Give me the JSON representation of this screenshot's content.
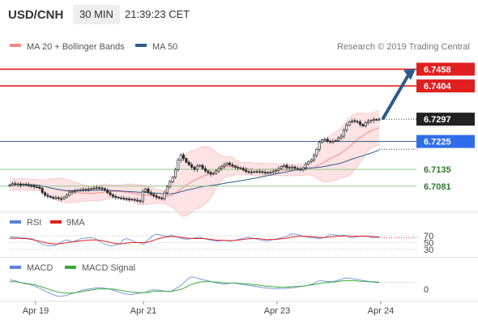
{
  "header": {
    "pair": "USD/CNH",
    "timeframe": "30 MIN",
    "time": "21:39:23 CET"
  },
  "chart_data": {
    "type": "candlestick",
    "legend": {
      "ma20_bollinger": "MA 20 + Bollinger Bands",
      "ma50": "MA 50"
    },
    "copyright": "Research © 2019 Trading Central",
    "x_ticks": [
      "Apr 19",
      "Apr 21",
      "Apr 23",
      "Apr 24"
    ],
    "price_levels": [
      {
        "value": 6.7458,
        "label": "6.7458",
        "kind": "resistance"
      },
      {
        "value": 6.7404,
        "label": "6.7404",
        "kind": "resistance"
      },
      {
        "value": 6.7297,
        "label": "6.7297",
        "kind": "last"
      },
      {
        "value": 6.7225,
        "label": "6.7225",
        "kind": "pivot"
      },
      {
        "value": 6.7135,
        "label": "6.7135",
        "kind": "support"
      },
      {
        "value": 6.7081,
        "label": "6.7081",
        "kind": "support"
      }
    ],
    "close": [
      6.7085,
      6.7089,
      6.7086,
      6.7088,
      6.7084,
      6.7087,
      6.7085,
      6.7083,
      6.7082,
      6.7079,
      6.7078,
      6.7074,
      6.706,
      6.7052,
      6.7048,
      6.7045,
      6.7042,
      6.7044,
      6.7041,
      6.704,
      6.7046,
      6.7052,
      6.706,
      6.7064,
      6.7066,
      6.7068,
      6.7069,
      6.707,
      6.7071,
      6.7072,
      6.7073,
      6.7075,
      6.7076,
      6.7075,
      6.7073,
      6.7068,
      6.706,
      6.7053,
      6.7048,
      6.7045,
      6.7043,
      6.7042,
      6.7041,
      6.704,
      6.7039,
      6.7038,
      6.7036,
      6.7034,
      6.7032,
      6.7064,
      6.7072,
      6.706,
      6.7055,
      6.705,
      6.7045,
      6.7042,
      6.704,
      6.706,
      6.708,
      6.7095,
      6.711,
      6.7135,
      6.7165,
      6.7182,
      6.717,
      6.7158,
      6.715,
      6.7142,
      6.7135,
      6.7146,
      6.7148,
      6.7138,
      6.713,
      6.7125,
      6.712,
      6.7122,
      6.713,
      6.7138,
      6.7145,
      6.715,
      6.7155,
      6.715,
      6.7146,
      6.7142,
      6.714,
      6.7138,
      6.7133,
      6.7128,
      6.7127,
      6.7126,
      6.7128,
      6.7127,
      6.7128,
      6.7126,
      6.7125,
      6.7124,
      6.7126,
      6.7128,
      6.7132,
      6.7138,
      6.7144,
      6.7148,
      6.714,
      6.7142,
      6.7143,
      6.7138,
      6.7136,
      6.7134,
      6.714,
      6.7152,
      6.716,
      6.7165,
      6.718,
      6.72,
      6.7222,
      6.723,
      6.7232,
      6.7226,
      6.7224,
      6.7226,
      6.7228,
      6.7236,
      6.7242,
      6.7262,
      6.7278,
      6.7288,
      6.7292,
      6.729,
      6.7288,
      6.728,
      6.7275,
      6.7285,
      6.729,
      6.7293,
      6.7296,
      6.7295,
      6.7297
    ],
    "y_range": [
      6.701,
      6.748
    ],
    "rsi": {
      "name": "RSI",
      "ma_name": "9MA",
      "levels": [
        70,
        50,
        30
      ],
      "level_labels": [
        "70",
        "50",
        "30"
      ],
      "values": [
        66,
        67,
        66,
        65,
        64,
        64,
        63,
        62,
        60,
        55,
        50,
        45,
        42,
        40,
        42,
        40,
        45,
        50,
        55,
        58,
        56,
        52,
        55,
        58,
        62,
        63,
        64,
        65,
        64,
        60,
        55,
        50,
        45,
        42,
        40,
        42,
        44,
        46,
        58,
        62,
        60,
        56,
        52,
        50,
        48,
        45,
        55,
        62,
        70,
        75,
        74,
        72,
        70,
        68,
        72,
        70,
        68,
        64,
        62,
        60,
        60,
        62,
        64,
        65,
        66,
        62,
        60,
        58,
        56,
        55,
        54,
        56,
        57,
        55,
        54,
        56,
        58,
        60,
        62,
        64,
        66,
        64,
        62,
        60,
        58,
        56,
        55,
        56,
        58,
        60,
        62,
        64,
        66,
        68,
        74,
        76,
        75,
        73,
        70,
        68,
        66,
        65,
        64,
        63,
        62,
        64,
        66,
        72,
        74,
        73,
        71,
        70,
        72,
        70,
        66,
        64,
        66,
        68,
        70,
        70,
        68,
        66,
        64,
        66,
        64
      ],
      "ma_values": [
        63,
        63,
        63,
        63,
        62,
        62,
        61,
        60,
        58,
        56,
        54,
        52,
        50,
        48,
        47,
        46,
        46,
        47,
        48,
        50,
        51,
        52,
        53,
        54,
        55,
        56,
        57,
        58,
        58,
        58,
        57,
        56,
        54,
        52,
        50,
        48,
        47,
        46,
        47,
        48,
        49,
        50,
        50,
        50,
        50,
        50,
        51,
        53,
        56,
        59,
        62,
        64,
        66,
        67,
        68,
        68,
        67,
        66,
        65,
        64,
        63,
        62,
        62,
        62,
        62,
        62,
        61,
        60,
        59,
        58,
        57,
        57,
        57,
        56,
        56,
        56,
        57,
        58,
        59,
        60,
        61,
        62,
        62,
        62,
        61,
        60,
        59,
        59,
        59,
        59,
        60,
        61,
        62,
        63,
        65,
        67,
        68,
        69,
        69,
        69,
        68,
        68,
        67,
        66,
        65,
        65,
        65,
        66,
        67,
        68,
        69,
        69,
        70,
        70,
        69,
        69,
        69,
        69,
        69,
        69,
        69,
        68,
        68,
        67,
        67
      ]
    },
    "macd": {
      "name": "MACD",
      "signal_name": "MACD Signal",
      "zero_label": "0",
      "values": [
        20,
        19,
        18,
        16,
        14,
        12,
        11,
        10,
        8,
        6,
        3,
        0,
        -3,
        -6,
        -9,
        -12,
        -14,
        -16,
        -16,
        -15,
        -14,
        -12,
        -10,
        -8,
        -6,
        -4,
        -2,
        -1,
        0,
        1,
        2,
        3,
        3,
        2,
        1,
        0,
        -2,
        -4,
        -6,
        -8,
        -10,
        -11,
        -12,
        -12,
        -11,
        -10,
        -9,
        -8,
        -7,
        -4,
        -2,
        -2,
        -2,
        -3,
        -4,
        -5,
        -6,
        -4,
        -1,
        3,
        7,
        12,
        18,
        24,
        26,
        26,
        24,
        22,
        20,
        19,
        18,
        16,
        14,
        13,
        12,
        11,
        11,
        12,
        13,
        13,
        12,
        11,
        10,
        9,
        8,
        7,
        6,
        5,
        4,
        3,
        2,
        2,
        1,
        1,
        1,
        1,
        1,
        1,
        2,
        2,
        3,
        4,
        5,
        6,
        7,
        8,
        10,
        12,
        16,
        18,
        18,
        17,
        16,
        16,
        17,
        18,
        20,
        22,
        24,
        24,
        23,
        22,
        21,
        20,
        19,
        18,
        17,
        16,
        15,
        14,
        14
      ],
      "signal_values": [
        16,
        16,
        16,
        15,
        14,
        13,
        12,
        11,
        10,
        9,
        7,
        5,
        3,
        1,
        -1,
        -3,
        -5,
        -7,
        -8,
        -9,
        -9,
        -9,
        -9,
        -8,
        -7,
        -6,
        -5,
        -4,
        -3,
        -2,
        -1,
        0,
        0,
        0,
        0,
        0,
        0,
        -1,
        -2,
        -3,
        -4,
        -5,
        -6,
        -7,
        -7,
        -8,
        -8,
        -8,
        -8,
        -7,
        -6,
        -5,
        -5,
        -5,
        -5,
        -5,
        -5,
        -5,
        -4,
        -3,
        -1,
        1,
        4,
        7,
        10,
        12,
        14,
        15,
        16,
        16,
        16,
        16,
        15,
        15,
        14,
        14,
        13,
        13,
        13,
        13,
        13,
        12,
        12,
        11,
        11,
        10,
        9,
        9,
        8,
        7,
        6,
        6,
        5,
        5,
        4,
        4,
        4,
        4,
        4,
        5,
        5,
        5,
        6,
        6,
        7,
        8,
        9,
        10,
        11,
        12,
        13,
        14,
        14,
        15,
        15,
        16,
        17,
        18,
        18,
        18,
        18,
        18,
        18,
        17,
        17,
        17,
        16,
        16,
        16,
        15,
        15
      ]
    }
  }
}
